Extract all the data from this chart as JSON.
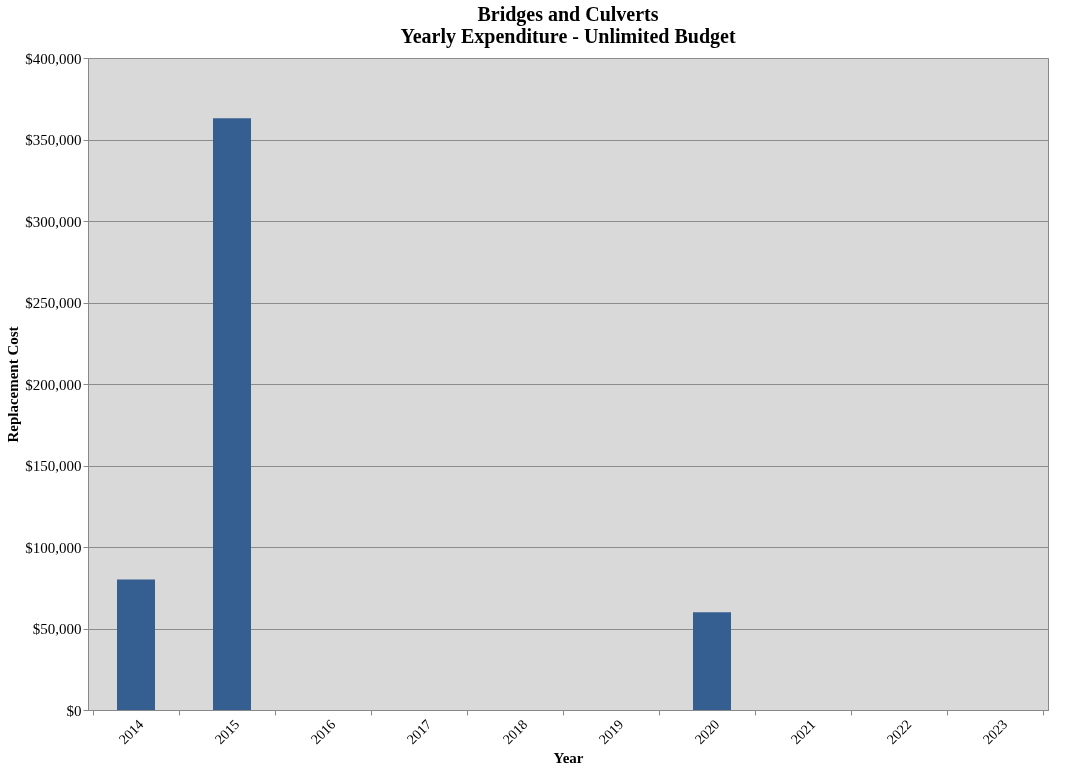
{
  "chart_data": {
    "type": "bar",
    "title": [
      "Bridges and Culverts",
      "Yearly Expenditure - Unlimited Budget"
    ],
    "xlabel": "Year",
    "ylabel": "Replacement Cost",
    "categories": [
      "2014",
      "2015",
      "2016",
      "2017",
      "2018",
      "2019",
      "2020",
      "2021",
      "2022",
      "2023"
    ],
    "values": [
      80000,
      363000,
      0,
      0,
      0,
      0,
      60000,
      0,
      0,
      0
    ],
    "color": "#365f91",
    "ylim": [
      0,
      400000
    ],
    "yticks": [
      {
        "value": 0,
        "label": "$0"
      },
      {
        "value": 50000,
        "label": "$50,000"
      },
      {
        "value": 100000,
        "label": "$100,000"
      },
      {
        "value": 150000,
        "label": "$150,000"
      },
      {
        "value": 200000,
        "label": "$200,000"
      },
      {
        "value": 250000,
        "label": "$250,000"
      },
      {
        "value": 300000,
        "label": "$300,000"
      },
      {
        "value": 350000,
        "label": "$350,000"
      },
      {
        "value": 400000,
        "label": "$400,000"
      }
    ],
    "grid": "y"
  }
}
